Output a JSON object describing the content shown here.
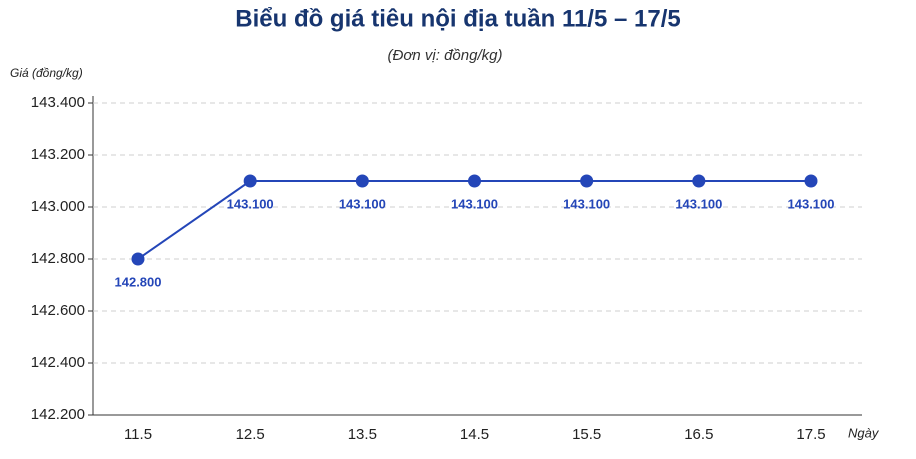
{
  "chart_data": {
    "type": "line",
    "title": "Biểu đồ giá tiêu nội địa tuần 11/5 – 17/5",
    "subtitle": "(Đơn vị: đồng/kg)",
    "y_label": "Giá (đồng/kg)",
    "x_label": "Ngày",
    "categories": [
      "11.5",
      "12.5",
      "13.5",
      "14.5",
      "15.5",
      "16.5",
      "17.5"
    ],
    "series": [
      {
        "color": "#2446b8",
        "values": [
          142800,
          143100,
          143100,
          143100,
          143100,
          143100,
          143100
        ],
        "value_labels": [
          "142.800",
          "143.100",
          "143.100",
          "143.100",
          "143.100",
          "143.100",
          "143.100"
        ]
      }
    ],
    "ylim": [
      142200,
      143400
    ],
    "yticks": [
      {
        "value": 142200,
        "label": "142.200"
      },
      {
        "value": 142400,
        "label": "142.400"
      },
      {
        "value": 142600,
        "label": "142.600"
      },
      {
        "value": 142800,
        "label": "142.800"
      },
      {
        "value": 143000,
        "label": "143.000"
      },
      {
        "value": 143200,
        "label": "143.200"
      },
      {
        "value": 143400,
        "label": "143.400"
      }
    ],
    "grid": true
  }
}
